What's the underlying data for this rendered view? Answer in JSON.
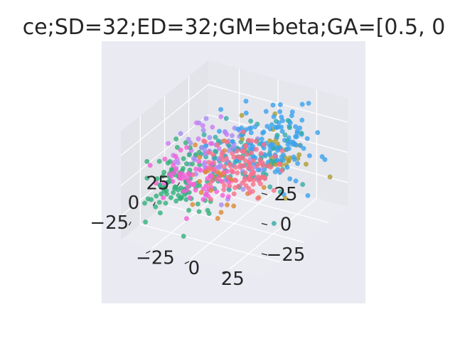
{
  "chart_data": {
    "type": "scatter",
    "projection": "3d",
    "title": "ce;SD=32;ED=32;GM=beta;GA=[0.5, 0",
    "xlabel": "",
    "ylabel": "",
    "zlabel": "",
    "grid": true,
    "legend": "none",
    "x_ticks": [
      "−25",
      "0",
      "25"
    ],
    "y_ticks": [
      "−25",
      "0",
      "25"
    ],
    "z_ticks": [
      "−25",
      "0",
      "25"
    ],
    "xlim": [
      -45,
      45
    ],
    "ylim": [
      -45,
      45
    ],
    "zlim": [
      -45,
      45
    ],
    "colors": {
      "pane_bg": "#eaeaf2",
      "pane_left": "#e3e3ea",
      "pane_right": "#e6e6ed",
      "pane_floor": "#ebebf2",
      "grid": "#ffffff",
      "text": "#262626"
    },
    "clusters": [
      {
        "color": "#f77189",
        "cx": -22,
        "cy": 18,
        "cz": 22,
        "s": 11,
        "n": 110
      },
      {
        "color": "#3ba3ec",
        "cx": 22,
        "cy": 12,
        "cz": 12,
        "s": 12,
        "n": 120
      },
      {
        "color": "#36ada4",
        "cx": 12,
        "cy": 0,
        "cz": 0,
        "s": 14,
        "n": 90
      },
      {
        "color": "#33b07a",
        "cx": -18,
        "cy": -25,
        "cz": -12,
        "s": 12,
        "n": 95
      },
      {
        "color": "#f45fd4",
        "cx": -32,
        "cy": -5,
        "cz": 10,
        "s": 10,
        "n": 60
      },
      {
        "color": "#a48cf4",
        "cx": 20,
        "cy": -22,
        "cz": -14,
        "s": 12,
        "n": 75
      },
      {
        "color": "#dc8932",
        "cx": -28,
        "cy": 5,
        "cz": 5,
        "s": 14,
        "n": 22
      },
      {
        "color": "#ae9d31",
        "cx": 32,
        "cy": 12,
        "cz": -5,
        "s": 14,
        "n": 30
      },
      {
        "color": "#cc7af4",
        "cx": 8,
        "cy": -28,
        "cz": 0,
        "s": 12,
        "n": 20
      }
    ]
  }
}
